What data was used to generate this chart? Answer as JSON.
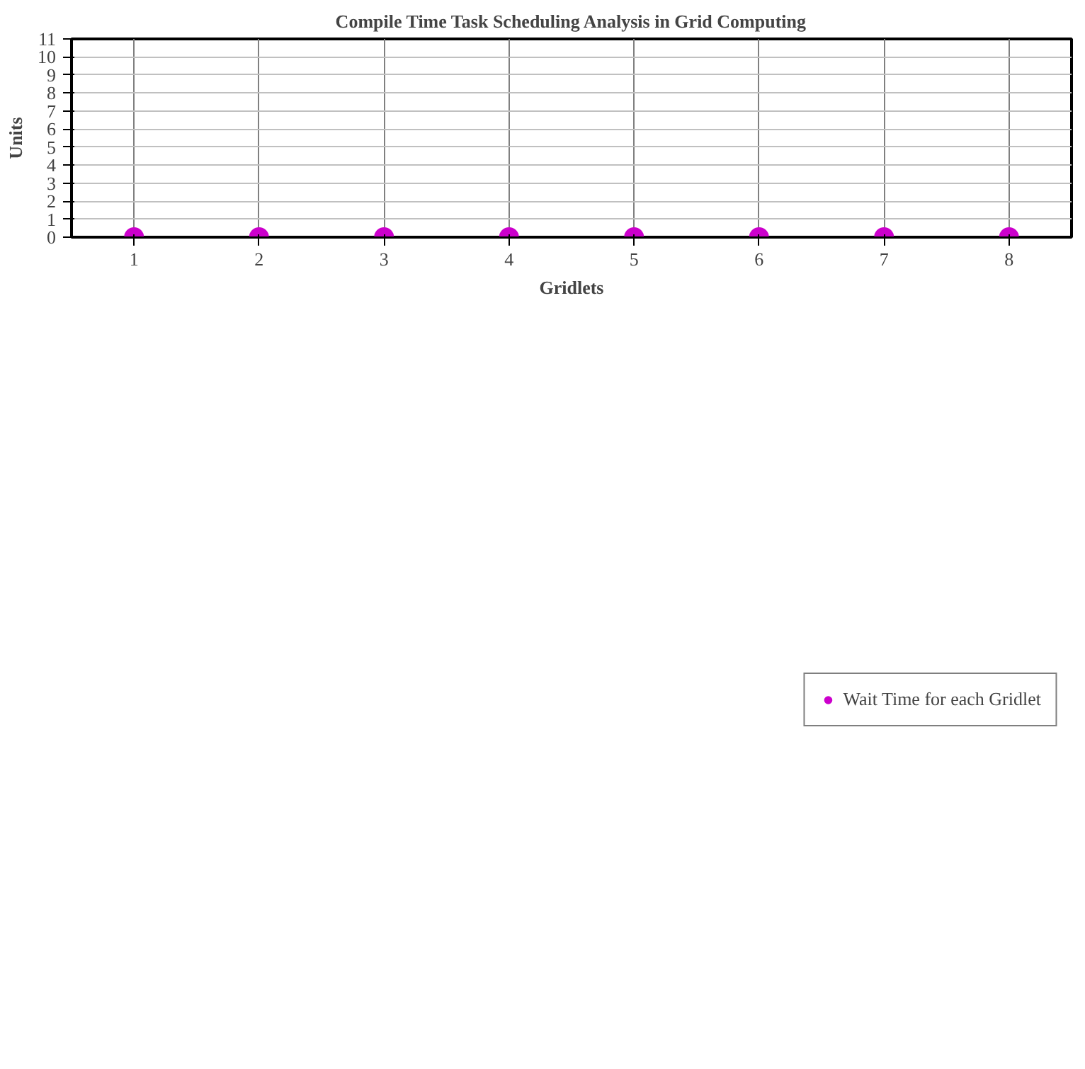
{
  "chart_data": {
    "type": "scatter",
    "title": "Compile Time Task Scheduling Analysis in Grid Computing",
    "xlabel": "Gridlets",
    "ylabel": "Units",
    "x": [
      1,
      2,
      3,
      4,
      5,
      6,
      7,
      8
    ],
    "series": [
      {
        "name": "Wait Time for each Gridlet",
        "color": "#cc00cc",
        "values": [
          0,
          0,
          0,
          0,
          0,
          0,
          0,
          0
        ]
      }
    ],
    "xlim": [
      0.5,
      8.5
    ],
    "xticks": [
      1,
      2,
      3,
      4,
      5,
      6,
      7,
      8
    ],
    "ylim": [
      0,
      11
    ],
    "yticks": [
      0,
      1,
      2,
      3,
      4,
      5,
      6,
      7,
      8,
      9,
      10,
      11
    ],
    "grid": true,
    "legend": "bottom",
    "marker": "circle"
  }
}
